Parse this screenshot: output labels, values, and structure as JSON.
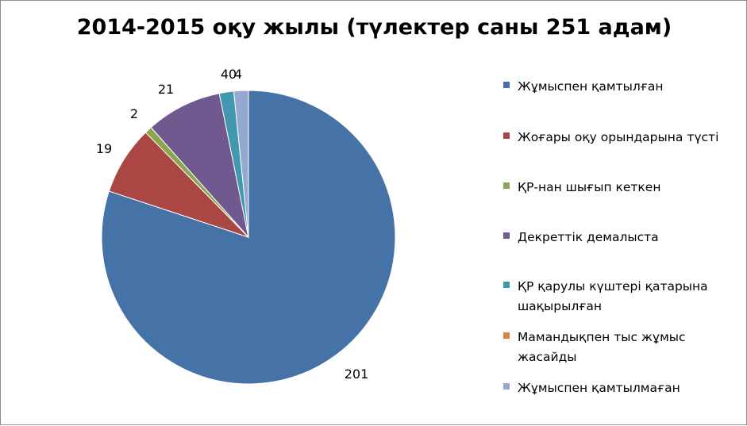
{
  "chart_data": {
    "type": "pie",
    "title": "2014-2015 оқу жылы (түлектер саны 251 адам)",
    "legend_position": "right",
    "slices": [
      {
        "label": "Жұмыспен қамтылған",
        "value": 201,
        "value_label": "201",
        "color": "#4572A7"
      },
      {
        "label": "Жоғары оқу орындарына түсті",
        "value": 19,
        "value_label": "19",
        "color": "#AA4643"
      },
      {
        "label": "ҚР-нан шығып кеткен",
        "value": 2,
        "value_label": "2",
        "color": "#89A54E"
      },
      {
        "label": "Декреттік демалыста",
        "value": 21,
        "value_label": "21",
        "color": "#71588F"
      },
      {
        "label": "ҚР қарулы күштері қатарына шақырылған",
        "value": 4,
        "value_label": "4",
        "color": "#4198AF"
      },
      {
        "label": "Мамандықпен тыс жұмыс жасайды",
        "value": 0,
        "value_label": "0",
        "color": "#DB843D"
      },
      {
        "label": "Жұмыспен қамтылмаған",
        "value": 4,
        "value_label": "4",
        "color": "#93A9CF"
      }
    ]
  }
}
